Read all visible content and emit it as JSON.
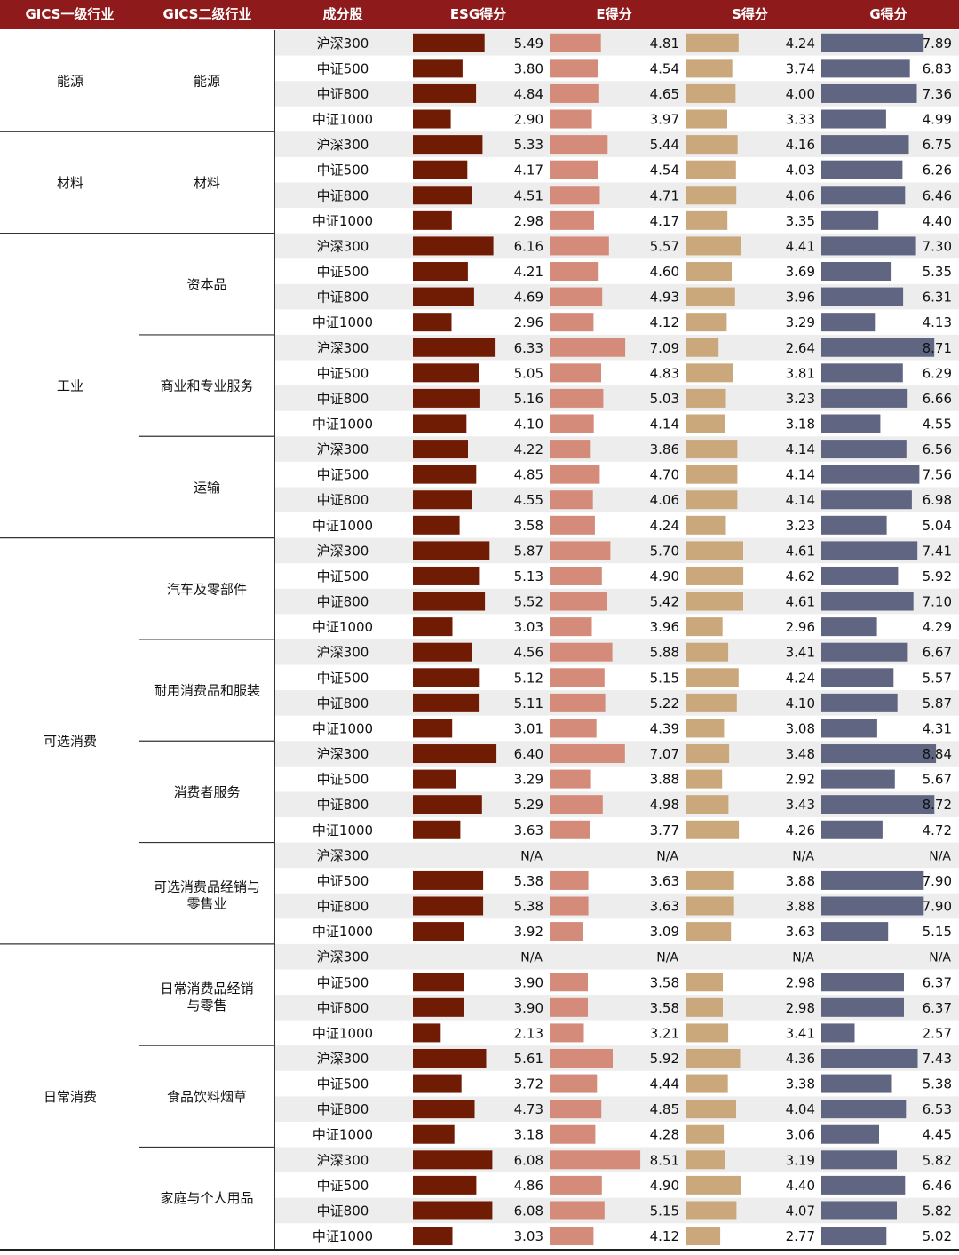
{
  "header": {
    "labels": [
      "GICS一级行业",
      "GICS二级行业",
      "成分股",
      "ESG得分",
      "E得分",
      "S得分",
      "G得分"
    ],
    "bg_color": "#8e1a1c"
  },
  "colors": {
    "esg": "#701c05",
    "e": "#d48b7a",
    "s": "#cba77c",
    "g": "#606682",
    "stripe": "#ededed",
    "rule": "#333333"
  },
  "chart_data": {
    "type": "table",
    "columns": [
      "GICS一级行业",
      "GICS二级行业",
      "成分股",
      "ESG得分",
      "E得分",
      "S得分",
      "G得分"
    ],
    "sectors": [
      {
        "l1": "能源",
        "groups": [
          {
            "l2": "能源",
            "rows": [
              {
                "index": "沪深300",
                "esg": 5.49,
                "e": 4.81,
                "s": 4.24,
                "g": 7.89
              },
              {
                "index": "中证500",
                "esg": 3.8,
                "e": 4.54,
                "s": 3.74,
                "g": 6.83
              },
              {
                "index": "中证800",
                "esg": 4.84,
                "e": 4.65,
                "s": 4.0,
                "g": 7.36
              },
              {
                "index": "中证1000",
                "esg": 2.9,
                "e": 3.97,
                "s": 3.33,
                "g": 4.99
              }
            ]
          }
        ]
      },
      {
        "l1": "材料",
        "groups": [
          {
            "l2": "材料",
            "rows": [
              {
                "index": "沪深300",
                "esg": 5.33,
                "e": 5.44,
                "s": 4.16,
                "g": 6.75
              },
              {
                "index": "中证500",
                "esg": 4.17,
                "e": 4.54,
                "s": 4.03,
                "g": 6.26
              },
              {
                "index": "中证800",
                "esg": 4.51,
                "e": 4.71,
                "s": 4.06,
                "g": 6.46
              },
              {
                "index": "中证1000",
                "esg": 2.98,
                "e": 4.17,
                "s": 3.35,
                "g": 4.4
              }
            ]
          }
        ]
      },
      {
        "l1": "工业",
        "groups": [
          {
            "l2": "资本品",
            "rows": [
              {
                "index": "沪深300",
                "esg": 6.16,
                "e": 5.57,
                "s": 4.41,
                "g": 7.3
              },
              {
                "index": "中证500",
                "esg": 4.21,
                "e": 4.6,
                "s": 3.69,
                "g": 5.35
              },
              {
                "index": "中证800",
                "esg": 4.69,
                "e": 4.93,
                "s": 3.96,
                "g": 6.31
              },
              {
                "index": "中证1000",
                "esg": 2.96,
                "e": 4.12,
                "s": 3.29,
                "g": 4.13
              }
            ]
          },
          {
            "l2": "商业和专业服务",
            "rows": [
              {
                "index": "沪深300",
                "esg": 6.33,
                "e": 7.09,
                "s": 2.64,
                "g": 8.71
              },
              {
                "index": "中证500",
                "esg": 5.05,
                "e": 4.83,
                "s": 3.81,
                "g": 6.29
              },
              {
                "index": "中证800",
                "esg": 5.16,
                "e": 5.03,
                "s": 3.23,
                "g": 6.66
              },
              {
                "index": "中证1000",
                "esg": 4.1,
                "e": 4.14,
                "s": 3.18,
                "g": 4.55
              }
            ]
          },
          {
            "l2": "运输",
            "rows": [
              {
                "index": "沪深300",
                "esg": 4.22,
                "e": 3.86,
                "s": 4.14,
                "g": 6.56
              },
              {
                "index": "中证500",
                "esg": 4.85,
                "e": 4.7,
                "s": 4.14,
                "g": 7.56
              },
              {
                "index": "中证800",
                "esg": 4.55,
                "e": 4.06,
                "s": 4.14,
                "g": 6.98
              },
              {
                "index": "中证1000",
                "esg": 3.58,
                "e": 4.24,
                "s": 3.23,
                "g": 5.04
              }
            ]
          }
        ]
      },
      {
        "l1": "可选消费",
        "groups": [
          {
            "l2": "汽车及零部件",
            "rows": [
              {
                "index": "沪深300",
                "esg": 5.87,
                "e": 5.7,
                "s": 4.61,
                "g": 7.41
              },
              {
                "index": "中证500",
                "esg": 5.13,
                "e": 4.9,
                "s": 4.62,
                "g": 5.92
              },
              {
                "index": "中证800",
                "esg": 5.52,
                "e": 5.42,
                "s": 4.61,
                "g": 7.1
              },
              {
                "index": "中证1000",
                "esg": 3.03,
                "e": 3.96,
                "s": 2.96,
                "g": 4.29
              }
            ]
          },
          {
            "l2": "耐用消费品和服装",
            "rows": [
              {
                "index": "沪深300",
                "esg": 4.56,
                "e": 5.88,
                "s": 3.41,
                "g": 6.67
              },
              {
                "index": "中证500",
                "esg": 5.12,
                "e": 5.15,
                "s": 4.24,
                "g": 5.57
              },
              {
                "index": "中证800",
                "esg": 5.11,
                "e": 5.22,
                "s": 4.1,
                "g": 5.87
              },
              {
                "index": "中证1000",
                "esg": 3.01,
                "e": 4.39,
                "s": 3.08,
                "g": 4.31
              }
            ]
          },
          {
            "l2": "消费者服务",
            "rows": [
              {
                "index": "沪深300",
                "esg": 6.4,
                "e": 7.07,
                "s": 3.48,
                "g": 8.84
              },
              {
                "index": "中证500",
                "esg": 3.29,
                "e": 3.88,
                "s": 2.92,
                "g": 5.67
              },
              {
                "index": "中证800",
                "esg": 5.29,
                "e": 4.98,
                "s": 3.43,
                "g": 8.72
              },
              {
                "index": "中证1000",
                "esg": 3.63,
                "e": 3.77,
                "s": 4.26,
                "g": 4.72
              }
            ]
          },
          {
            "l2": "可选消费品经销与零售业",
            "rows": [
              {
                "index": "沪深300",
                "esg": "N/A",
                "e": "N/A",
                "s": "N/A",
                "g": "N/A"
              },
              {
                "index": "中证500",
                "esg": 5.38,
                "e": 3.63,
                "s": 3.88,
                "g": 7.9
              },
              {
                "index": "中证800",
                "esg": 5.38,
                "e": 3.63,
                "s": 3.88,
                "g": 7.9
              },
              {
                "index": "中证1000",
                "esg": 3.92,
                "e": 3.09,
                "s": 3.63,
                "g": 5.15
              }
            ]
          }
        ]
      },
      {
        "l1": "日常消费",
        "groups": [
          {
            "l2": "日常消费品经销与零售",
            "rows": [
              {
                "index": "沪深300",
                "esg": "N/A",
                "e": "N/A",
                "s": "N/A",
                "g": "N/A"
              },
              {
                "index": "中证500",
                "esg": 3.9,
                "e": 3.58,
                "s": 2.98,
                "g": 6.37
              },
              {
                "index": "中证800",
                "esg": 3.9,
                "e": 3.58,
                "s": 2.98,
                "g": 6.37
              },
              {
                "index": "中证1000",
                "esg": 2.13,
                "e": 3.21,
                "s": 3.41,
                "g": 2.57
              }
            ]
          },
          {
            "l2": "食品饮料烟草",
            "rows": [
              {
                "index": "沪深300",
                "esg": 5.61,
                "e": 5.92,
                "s": 4.36,
                "g": 7.43
              },
              {
                "index": "中证500",
                "esg": 3.72,
                "e": 4.44,
                "s": 3.38,
                "g": 5.38
              },
              {
                "index": "中证800",
                "esg": 4.73,
                "e": 4.85,
                "s": 4.04,
                "g": 6.53
              },
              {
                "index": "中证1000",
                "esg": 3.18,
                "e": 4.28,
                "s": 3.06,
                "g": 4.45
              }
            ]
          },
          {
            "l2": "家庭与个人用品",
            "rows": [
              {
                "index": "沪深300",
                "esg": 6.08,
                "e": 8.51,
                "s": 3.19,
                "g": 5.82
              },
              {
                "index": "中证500",
                "esg": 4.86,
                "e": 4.9,
                "s": 4.4,
                "g": 6.46
              },
              {
                "index": "中证800",
                "esg": 6.08,
                "e": 5.15,
                "s": 4.07,
                "g": 5.82
              },
              {
                "index": "中证1000",
                "esg": 3.03,
                "e": 4.12,
                "s": 2.77,
                "g": 5.02
              }
            ]
          }
        ]
      }
    ]
  }
}
